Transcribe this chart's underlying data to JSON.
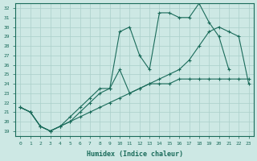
{
  "xlabel": "Humidex (Indice chaleur)",
  "xlim": [
    -0.5,
    23.5
  ],
  "ylim": [
    18.5,
    32.5
  ],
  "yticks": [
    19,
    20,
    21,
    22,
    23,
    24,
    25,
    26,
    27,
    28,
    29,
    30,
    31,
    32
  ],
  "xticks": [
    0,
    1,
    2,
    3,
    4,
    5,
    6,
    7,
    8,
    9,
    10,
    11,
    12,
    13,
    14,
    15,
    16,
    17,
    18,
    19,
    20,
    21,
    22,
    23
  ],
  "bg_color": "#cde8e4",
  "grid_color": "#b0d8d4",
  "line_color": "#1a6b5a",
  "line1_x": [
    0,
    1,
    2,
    3,
    4,
    5,
    6,
    7,
    8,
    9,
    10,
    11,
    12,
    13,
    14,
    15,
    16,
    17,
    18,
    19,
    20,
    21
  ],
  "line1_y": [
    21.5,
    21.0,
    19.5,
    19.0,
    19.5,
    20.5,
    21.5,
    22.5,
    23.5,
    23.5,
    29.5,
    30.0,
    27.0,
    25.5,
    31.5,
    31.5,
    31.0,
    31.0,
    32.5,
    30.5,
    29.0,
    25.5
  ],
  "line2_x": [
    0,
    1,
    2,
    3,
    4,
    5,
    6,
    7,
    8,
    9,
    10,
    11,
    12,
    13,
    14,
    15,
    16,
    17,
    18,
    19,
    20,
    21,
    22,
    23
  ],
  "line2_y": [
    21.5,
    21.0,
    19.5,
    19.0,
    19.5,
    20.0,
    21.0,
    22.0,
    23.0,
    23.5,
    25.5,
    23.0,
    23.5,
    24.0,
    24.5,
    25.0,
    25.5,
    26.5,
    28.0,
    29.5,
    30.0,
    29.5,
    29.0,
    24.0
  ],
  "line3_x": [
    0,
    1,
    2,
    3,
    4,
    5,
    6,
    7,
    8,
    9,
    10,
    11,
    12,
    13,
    14,
    15,
    16,
    17,
    18,
    19,
    20,
    21,
    22,
    23
  ],
  "line3_y": [
    21.5,
    21.0,
    19.5,
    19.0,
    19.5,
    20.0,
    20.5,
    21.0,
    21.5,
    22.0,
    22.5,
    23.0,
    23.5,
    24.0,
    24.0,
    24.0,
    24.5,
    24.5,
    24.5,
    24.5,
    24.5,
    24.5,
    24.5,
    24.5
  ]
}
